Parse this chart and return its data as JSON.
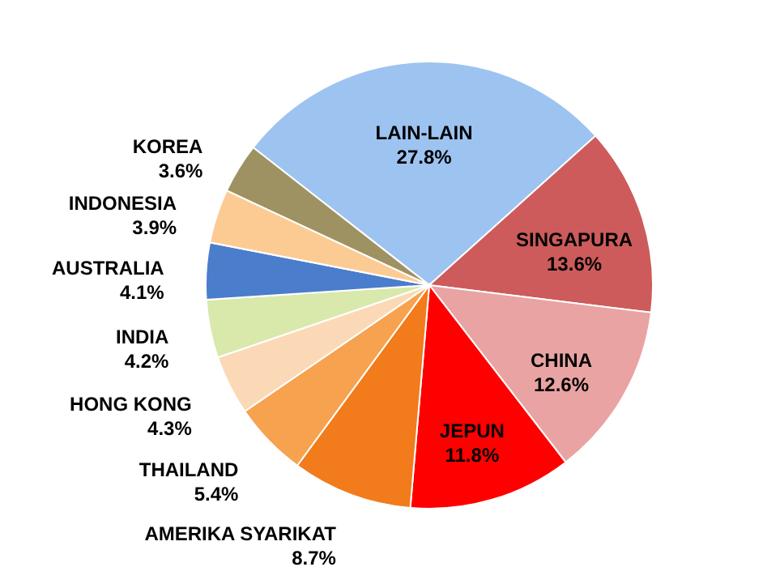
{
  "chart_data": {
    "type": "pie",
    "categories": [
      "LAIN-LAIN",
      "SINGAPURA",
      "CHINA",
      "JEPUN",
      "AMERIKA SYARIKAT",
      "THAILAND",
      "HONG KONG",
      "INDIA",
      "AUSTRALIA",
      "INDONESIA",
      "KOREA"
    ],
    "values": [
      27.8,
      13.6,
      12.6,
      11.8,
      8.7,
      5.4,
      4.3,
      4.2,
      4.1,
      3.9,
      3.6
    ],
    "value_labels": [
      "27.8%",
      "13.6%",
      "12.6%",
      "11.8%",
      "8.7%",
      "5.4%",
      "4.3%",
      "4.2%",
      "4.1%",
      "3.9%",
      "3.6%"
    ],
    "colors": [
      "#9dc3f0",
      "#cd5b5b",
      "#e9a3a3",
      "#ff0000",
      "#f27b1c",
      "#f7a24e",
      "#fcd9b6",
      "#d8e9ab",
      "#4a7dcb",
      "#fccb94",
      "#9e9262"
    ]
  }
}
